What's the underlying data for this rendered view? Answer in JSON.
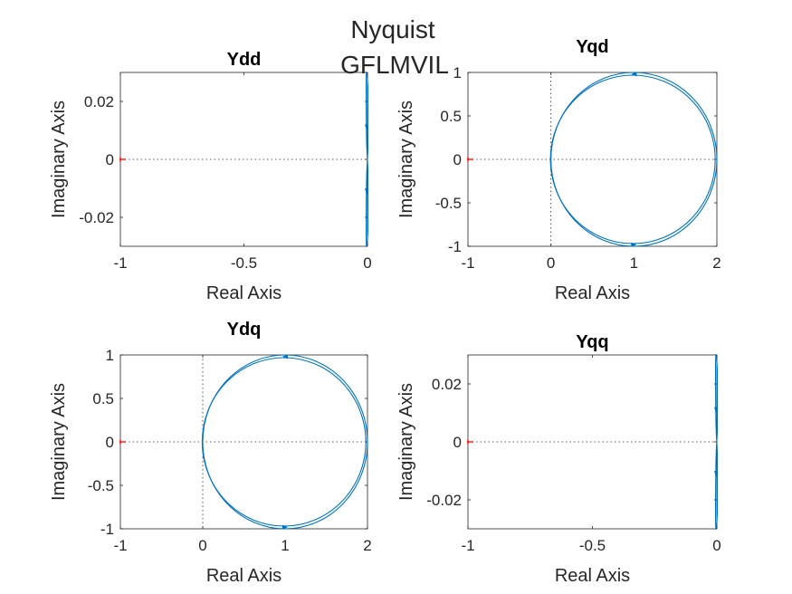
{
  "figure": {
    "title_lines": [
      "Nyquist",
      "GFLMVIL"
    ]
  },
  "colors": {
    "curve": "#0072bd",
    "critical_point": "#ff0000",
    "axis": "#262626"
  },
  "chart_data": [
    {
      "type": "line",
      "title": "Ydd",
      "xlabel": "Real Axis",
      "ylabel": "Imaginary Axis",
      "xlim": [
        -1,
        0
      ],
      "ylim": [
        -0.03,
        0.03
      ],
      "xticks": [
        -1,
        -0.5,
        0
      ],
      "xticklabels": [
        "-1",
        "-0.5",
        "0"
      ],
      "yticks": [
        -0.02,
        0,
        0.02
      ],
      "yticklabels": [
        "-0.02",
        "0",
        "0.02"
      ],
      "critical_point": [
        -1,
        0
      ],
      "series": [
        {
          "shape": "narrow-loops",
          "real_range": [
            -0.006,
            0.005
          ],
          "imag_range": [
            -0.03,
            0.03
          ],
          "arrows_imag": [
            0.011,
            -0.011
          ]
        }
      ],
      "grid": false,
      "legend": "none"
    },
    {
      "type": "line",
      "title": "Yqd",
      "xlabel": "Real Axis",
      "ylabel": "Imaginary Axis",
      "xlim": [
        -1,
        2
      ],
      "ylim": [
        -1,
        1
      ],
      "xticks": [
        -1,
        0,
        1,
        2
      ],
      "xticklabels": [
        "-1",
        "0",
        "1",
        "2"
      ],
      "yticks": [
        -1,
        -0.5,
        0,
        0.5,
        1
      ],
      "yticklabels": [
        "-1",
        "-0.5",
        "0",
        "0.5",
        "1"
      ],
      "critical_point": [
        -1,
        0
      ],
      "series": [
        {
          "shape": "circle",
          "center": [
            1,
            0
          ],
          "radius": 1,
          "arrows_imag": [
            0.98,
            -0.98
          ]
        }
      ],
      "grid": false,
      "legend": "none"
    },
    {
      "type": "line",
      "title": "Ydq",
      "xlabel": "Real Axis",
      "ylabel": "Imaginary Axis",
      "xlim": [
        -1,
        2
      ],
      "ylim": [
        -1,
        1
      ],
      "xticks": [
        -1,
        0,
        1,
        2
      ],
      "xticklabels": [
        "-1",
        "0",
        "1",
        "2"
      ],
      "yticks": [
        -1,
        -0.5,
        0,
        0.5,
        1
      ],
      "yticklabels": [
        "-1",
        "-0.5",
        "0",
        "0.5",
        "1"
      ],
      "critical_point": [
        -1,
        0
      ],
      "series": [
        {
          "shape": "circle",
          "center": [
            1,
            0
          ],
          "radius": 1,
          "arrows_imag": [
            0.98,
            -0.98
          ]
        }
      ],
      "grid": false,
      "legend": "none"
    },
    {
      "type": "line",
      "title": "Yqq",
      "xlabel": "Real Axis",
      "ylabel": "Imaginary Axis",
      "xlim": [
        -1,
        0
      ],
      "ylim": [
        -0.03,
        0.03
      ],
      "xticks": [
        -1,
        -0.5,
        0
      ],
      "xticklabels": [
        "-1",
        "-0.5",
        "0"
      ],
      "yticks": [
        -0.02,
        0,
        0.02
      ],
      "yticklabels": [
        "-0.02",
        "0",
        "0.02"
      ],
      "critical_point": [
        -1,
        0
      ],
      "series": [
        {
          "shape": "narrow-loops",
          "real_range": [
            -0.006,
            0.005
          ],
          "imag_range": [
            -0.03,
            0.03
          ],
          "arrows_imag": [
            0.011,
            -0.011
          ]
        }
      ],
      "grid": false,
      "legend": "none"
    }
  ]
}
